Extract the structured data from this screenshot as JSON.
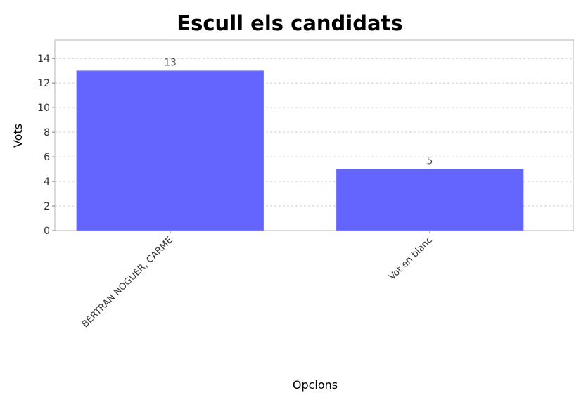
{
  "chart_data": {
    "type": "bar",
    "title": "Escull els candidats",
    "xlabel": "Opcions",
    "ylabel": "Vots",
    "categories": [
      "BERTRAN NOGUER, CARME",
      "Vot en blanc"
    ],
    "values": [
      13,
      5
    ],
    "value_labels": [
      "13",
      "5"
    ],
    "yticks": [
      "0",
      "2",
      "4",
      "6",
      "8",
      "10",
      "12",
      "14"
    ],
    "ylim": [
      0,
      15.5
    ],
    "grid": true,
    "legend": "none",
    "bar_color": "#6464ff",
    "bar_edge_color": "#8b8bff"
  }
}
